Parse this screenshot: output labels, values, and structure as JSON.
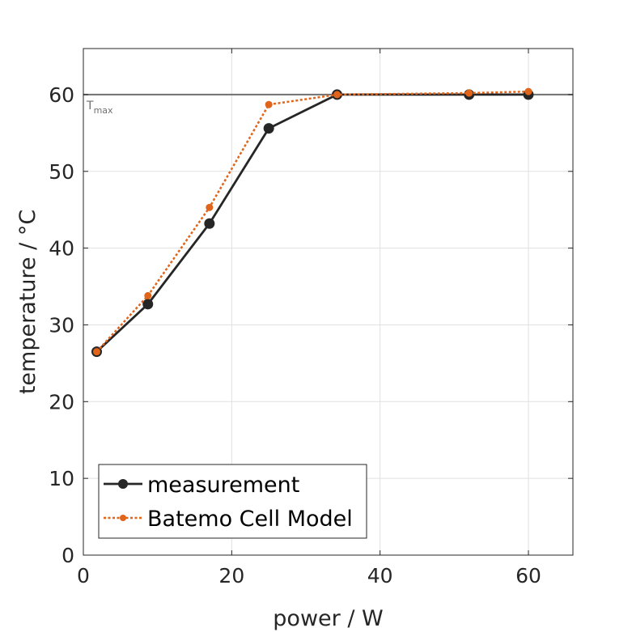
{
  "chart_data": {
    "type": "line",
    "xlabel": "power / W",
    "ylabel": "temperature / °C",
    "xlim": [
      0,
      66
    ],
    "ylim": [
      0,
      66
    ],
    "xticks": [
      0,
      20,
      40,
      60
    ],
    "yticks": [
      0,
      10,
      20,
      30,
      40,
      50,
      60
    ],
    "xtick_labels": [
      "0",
      "20",
      "40",
      "60"
    ],
    "ytick_labels": [
      "0",
      "10",
      "20",
      "30",
      "40",
      "50",
      "60"
    ],
    "grid": true,
    "legend_position": "bottom-left",
    "reference_line": {
      "y": 60,
      "label": "T",
      "label_sub": "max",
      "color": "#707070"
    },
    "series": [
      {
        "name": "measurement",
        "color": "#262626",
        "style": "solid",
        "x": [
          1.8,
          8.7,
          17.0,
          25.0,
          34.2,
          52.0,
          60.0
        ],
        "y": [
          26.5,
          32.7,
          43.2,
          55.6,
          60.0,
          60.0,
          60.0
        ]
      },
      {
        "name": "Batemo Cell Model",
        "color": "#e0641a",
        "style": "dotted",
        "x": [
          1.8,
          8.7,
          17.0,
          25.0,
          34.2,
          52.0,
          60.0
        ],
        "y": [
          26.5,
          33.8,
          45.3,
          58.7,
          60.0,
          60.2,
          60.4
        ]
      }
    ]
  }
}
